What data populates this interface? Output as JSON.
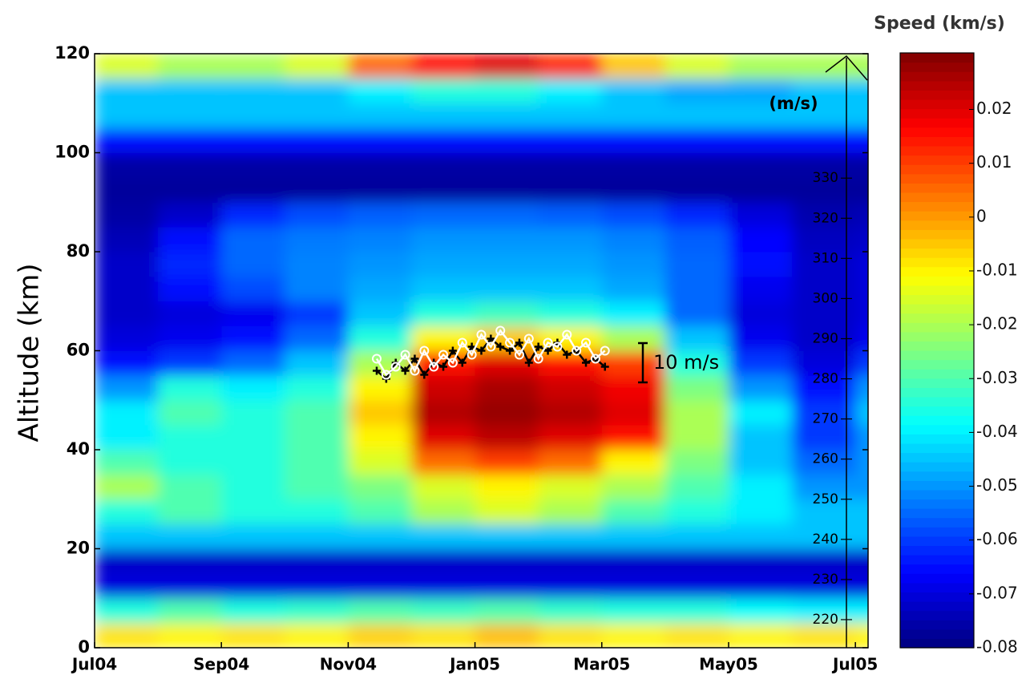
{
  "chart_data": {
    "type": "heatmap",
    "title": "Speed (km/s)",
    "ylabel": "Altitude (km)",
    "y2label": "(m/s)",
    "annotation": "10 m/s",
    "xlim": [
      0,
      12.2
    ],
    "xticks": [
      {
        "value": 0,
        "label": "Jul04"
      },
      {
        "value": 2,
        "label": "Sep04"
      },
      {
        "value": 4,
        "label": "Nov04"
      },
      {
        "value": 6,
        "label": "Jan05"
      },
      {
        "value": 8,
        "label": "Mar05"
      },
      {
        "value": 10,
        "label": "May05"
      },
      {
        "value": 12,
        "label": "Jul05"
      }
    ],
    "ylim": [
      0,
      120
    ],
    "yticks": [
      0,
      20,
      40,
      60,
      80,
      100,
      120
    ],
    "y2lim": [
      213,
      361
    ],
    "y2ticks": [
      220,
      230,
      240,
      250,
      260,
      270,
      280,
      290,
      300,
      310,
      320,
      330
    ],
    "clim": [
      -0.08,
      0.0305
    ],
    "cticks": [
      -0.08,
      -0.07,
      -0.06,
      -0.05,
      -0.04,
      -0.03,
      -0.02,
      -0.01,
      0,
      0.01,
      0.02
    ],
    "colormap": "jet",
    "x_edges": [
      0,
      1,
      2,
      3,
      4,
      5,
      6,
      7,
      8,
      9,
      10,
      11,
      12,
      13
    ],
    "y_edges": [
      0,
      5,
      10,
      15,
      20,
      25,
      30,
      35,
      40,
      45,
      50,
      55,
      60,
      65,
      70,
      75,
      80,
      85,
      90,
      95,
      100,
      105,
      110,
      115,
      120
    ],
    "z": [
      [
        -0.008,
        -0.01,
        -0.008,
        -0.01,
        -0.006,
        -0.008,
        -0.004,
        -0.008,
        -0.01,
        -0.008,
        -0.01,
        -0.008,
        -0.01
      ],
      [
        -0.035,
        -0.03,
        -0.035,
        -0.033,
        -0.03,
        -0.032,
        -0.03,
        -0.033,
        -0.035,
        -0.035,
        -0.038,
        -0.04,
        -0.04
      ],
      [
        -0.07,
        -0.07,
        -0.07,
        -0.07,
        -0.07,
        -0.07,
        -0.07,
        -0.07,
        -0.07,
        -0.07,
        -0.07,
        -0.07,
        -0.07
      ],
      [
        -0.072,
        -0.072,
        -0.072,
        -0.072,
        -0.072,
        -0.072,
        -0.072,
        -0.072,
        -0.072,
        -0.072,
        -0.072,
        -0.072,
        -0.072
      ],
      [
        -0.045,
        -0.045,
        -0.045,
        -0.045,
        -0.045,
        -0.045,
        -0.045,
        -0.045,
        -0.045,
        -0.045,
        -0.045,
        -0.045,
        -0.045
      ],
      [
        -0.035,
        -0.03,
        -0.035,
        -0.035,
        -0.03,
        -0.02,
        -0.015,
        -0.02,
        -0.03,
        -0.035,
        -0.04,
        -0.045,
        -0.045
      ],
      [
        -0.02,
        -0.03,
        -0.035,
        -0.03,
        -0.025,
        -0.015,
        -0.01,
        -0.015,
        -0.02,
        -0.03,
        -0.04,
        -0.05,
        -0.05
      ],
      [
        -0.03,
        -0.035,
        -0.035,
        -0.03,
        -0.015,
        0.005,
        0.01,
        0.005,
        -0.01,
        -0.025,
        -0.045,
        -0.055,
        -0.05
      ],
      [
        -0.04,
        -0.035,
        -0.035,
        -0.03,
        -0.01,
        0.02,
        0.024,
        0.02,
        0.015,
        -0.02,
        -0.045,
        -0.06,
        -0.05
      ],
      [
        -0.04,
        -0.03,
        -0.035,
        -0.03,
        -0.005,
        0.025,
        0.028,
        0.025,
        0.02,
        -0.02,
        -0.04,
        -0.06,
        -0.045
      ],
      [
        -0.05,
        -0.035,
        -0.04,
        -0.035,
        -0.01,
        0.022,
        0.026,
        0.022,
        0.018,
        -0.025,
        -0.05,
        -0.065,
        -0.05
      ],
      [
        -0.065,
        -0.06,
        -0.055,
        -0.045,
        -0.02,
        0.015,
        0.02,
        0.015,
        0.01,
        -0.035,
        -0.06,
        -0.07,
        -0.06
      ],
      [
        -0.07,
        -0.068,
        -0.065,
        -0.055,
        -0.035,
        -0.01,
        -0.005,
        -0.01,
        -0.02,
        -0.045,
        -0.068,
        -0.072,
        -0.068
      ],
      [
        -0.072,
        -0.07,
        -0.068,
        -0.06,
        -0.045,
        -0.035,
        -0.032,
        -0.035,
        -0.04,
        -0.055,
        -0.07,
        -0.072,
        -0.07
      ],
      [
        -0.072,
        -0.065,
        -0.058,
        -0.052,
        -0.048,
        -0.045,
        -0.045,
        -0.045,
        -0.048,
        -0.055,
        -0.068,
        -0.072,
        -0.07
      ],
      [
        -0.072,
        -0.062,
        -0.055,
        -0.052,
        -0.05,
        -0.048,
        -0.048,
        -0.048,
        -0.05,
        -0.055,
        -0.065,
        -0.072,
        -0.07
      ],
      [
        -0.074,
        -0.065,
        -0.055,
        -0.053,
        -0.052,
        -0.05,
        -0.05,
        -0.05,
        -0.052,
        -0.056,
        -0.066,
        -0.073,
        -0.072
      ],
      [
        -0.076,
        -0.072,
        -0.062,
        -0.058,
        -0.056,
        -0.055,
        -0.055,
        -0.056,
        -0.058,
        -0.062,
        -0.07,
        -0.075,
        -0.074
      ],
      [
        -0.077,
        -0.077,
        -0.077,
        -0.077,
        -0.077,
        -0.077,
        -0.077,
        -0.077,
        -0.077,
        -0.077,
        -0.077,
        -0.077,
        -0.077
      ],
      [
        -0.076,
        -0.076,
        -0.076,
        -0.076,
        -0.076,
        -0.076,
        -0.076,
        -0.076,
        -0.076,
        -0.076,
        -0.076,
        -0.076,
        -0.076
      ],
      [
        -0.065,
        -0.065,
        -0.065,
        -0.065,
        -0.065,
        -0.065,
        -0.065,
        -0.065,
        -0.065,
        -0.065,
        -0.065,
        -0.065,
        -0.065
      ],
      [
        -0.045,
        -0.045,
        -0.045,
        -0.045,
        -0.045,
        -0.045,
        -0.045,
        -0.045,
        -0.045,
        -0.045,
        -0.045,
        -0.045,
        -0.045
      ],
      [
        -0.045,
        -0.045,
        -0.045,
        -0.045,
        -0.04,
        -0.035,
        -0.035,
        -0.04,
        -0.045,
        -0.048,
        -0.048,
        -0.045,
        -0.045
      ],
      [
        -0.015,
        -0.02,
        -0.02,
        -0.015,
        0.005,
        0.015,
        0.02,
        0.012,
        -0.005,
        -0.015,
        -0.02,
        -0.02,
        -0.02
      ]
    ],
    "series": [
      {
        "color": "#000000",
        "marker": "cross",
        "axis": "y2",
        "x": [
          4.45,
          4.6,
          4.75,
          4.9,
          5.05,
          5.2,
          5.35,
          5.5,
          5.65,
          5.8,
          5.95,
          6.1,
          6.25,
          6.4,
          6.55,
          6.7,
          6.85,
          7.0,
          7.15,
          7.3,
          7.45,
          7.6,
          7.75,
          7.9,
          8.05
        ],
        "values": [
          282,
          280,
          284,
          282,
          285,
          281,
          284,
          283,
          287,
          284,
          288,
          287,
          290,
          288,
          287,
          289,
          284,
          288,
          287,
          289,
          286,
          287,
          284,
          285,
          283
        ]
      },
      {
        "color": "#ffffff",
        "marker": "circle",
        "axis": "y2",
        "x": [
          4.45,
          4.6,
          4.75,
          4.9,
          5.05,
          5.2,
          5.35,
          5.5,
          5.65,
          5.8,
          5.95,
          6.1,
          6.25,
          6.4,
          6.55,
          6.7,
          6.85,
          7.0,
          7.15,
          7.3,
          7.45,
          7.6,
          7.75,
          7.9,
          8.05
        ],
        "values": [
          285,
          281,
          283,
          286,
          282,
          287,
          283,
          286,
          284,
          289,
          286,
          291,
          288,
          292,
          289,
          286,
          290,
          285,
          289,
          288,
          291,
          287,
          289,
          285,
          287
        ]
      }
    ]
  }
}
